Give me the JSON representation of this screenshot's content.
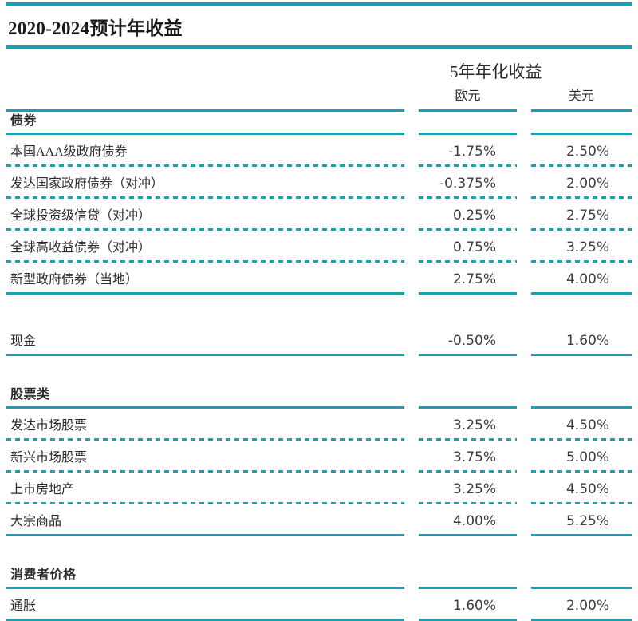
{
  "title": "2020-2024预计年收益",
  "columns_header": {
    "group": "5年年化收益",
    "eur": "欧元",
    "usd": "美元"
  },
  "colors": {
    "teal": "#1c9fb2",
    "title_text": "#1a1a1a",
    "label_text": "#2b2b2b",
    "value_text": "#3c3c3c"
  },
  "table": {
    "rows": [
      {
        "type": "section",
        "label": "债券",
        "rule": "solid"
      },
      {
        "type": "data",
        "label": "本国AAA级政府债券",
        "eur": "-1.75%",
        "usd": "2.50%",
        "rule": "dashed"
      },
      {
        "type": "data",
        "label": "发达国家政府债券（对冲）",
        "eur": "-0.375%",
        "usd": "2.00%",
        "rule": "dashed"
      },
      {
        "type": "data",
        "label": "全球投资级信贷（对冲）",
        "eur": "0.25%",
        "usd": "2.75%",
        "rule": "dashed"
      },
      {
        "type": "data",
        "label": "全球高收益债券（对冲）",
        "eur": "0.75%",
        "usd": "3.25%",
        "rule": "dashed"
      },
      {
        "type": "data",
        "label": "新型政府债券（当地）",
        "eur": "2.75%",
        "usd": "4.00%",
        "rule": "solid"
      },
      {
        "type": "spacer"
      },
      {
        "type": "data",
        "label": "现金",
        "eur": "-0.50%",
        "usd": "1.60%",
        "rule": "solid"
      },
      {
        "type": "spacer"
      },
      {
        "type": "section",
        "label": "股票类",
        "rule": "solid"
      },
      {
        "type": "data",
        "label": "发达市场股票",
        "eur": "3.25%",
        "usd": "4.50%",
        "rule": "dashed"
      },
      {
        "type": "data",
        "label": "新兴市场股票",
        "eur": "3.75%",
        "usd": "5.00%",
        "rule": "dashed"
      },
      {
        "type": "data",
        "label": "上市房地产",
        "eur": "3.25%",
        "usd": "4.50%",
        "rule": "dashed"
      },
      {
        "type": "data",
        "label": "大宗商品",
        "eur": "4.00%",
        "usd": "5.25%",
        "rule": "solid"
      },
      {
        "type": "spacer"
      },
      {
        "type": "section",
        "label": "消费者价格",
        "rule": "solid"
      },
      {
        "type": "data",
        "label": "通胀",
        "eur": "1.60%",
        "usd": "2.00%",
        "rule": "solid"
      }
    ]
  },
  "chart_data": {
    "type": "table",
    "title": "2020-2024预计年收益",
    "group_header": "5年年化收益",
    "columns": [
      "欧元",
      "美元"
    ],
    "units": "percent",
    "sections": [
      {
        "name": "债券",
        "rows": [
          {
            "label": "本国AAA级政府债券",
            "欧元": -1.75,
            "美元": 2.5
          },
          {
            "label": "发达国家政府债券（对冲）",
            "欧元": -0.375,
            "美元": 2.0
          },
          {
            "label": "全球投资级信贷（对冲）",
            "欧元": 0.25,
            "美元": 2.75
          },
          {
            "label": "全球高收益债券（对冲）",
            "欧元": 0.75,
            "美元": 3.25
          },
          {
            "label": "新型政府债券（当地）",
            "欧元": 2.75,
            "美元": 4.0
          }
        ]
      },
      {
        "name": "现金",
        "rows": [
          {
            "label": "现金",
            "欧元": -0.5,
            "美元": 1.6
          }
        ]
      },
      {
        "name": "股票类",
        "rows": [
          {
            "label": "发达市场股票",
            "欧元": 3.25,
            "美元": 4.5
          },
          {
            "label": "新兴市场股票",
            "欧元": 3.75,
            "美元": 5.0
          },
          {
            "label": "上市房地产",
            "欧元": 3.25,
            "美元": 4.5
          },
          {
            "label": "大宗商品",
            "欧元": 4.0,
            "美元": 5.25
          }
        ]
      },
      {
        "name": "消费者价格",
        "rows": [
          {
            "label": "通胀",
            "欧元": 1.6,
            "美元": 2.0
          }
        ]
      }
    ]
  }
}
